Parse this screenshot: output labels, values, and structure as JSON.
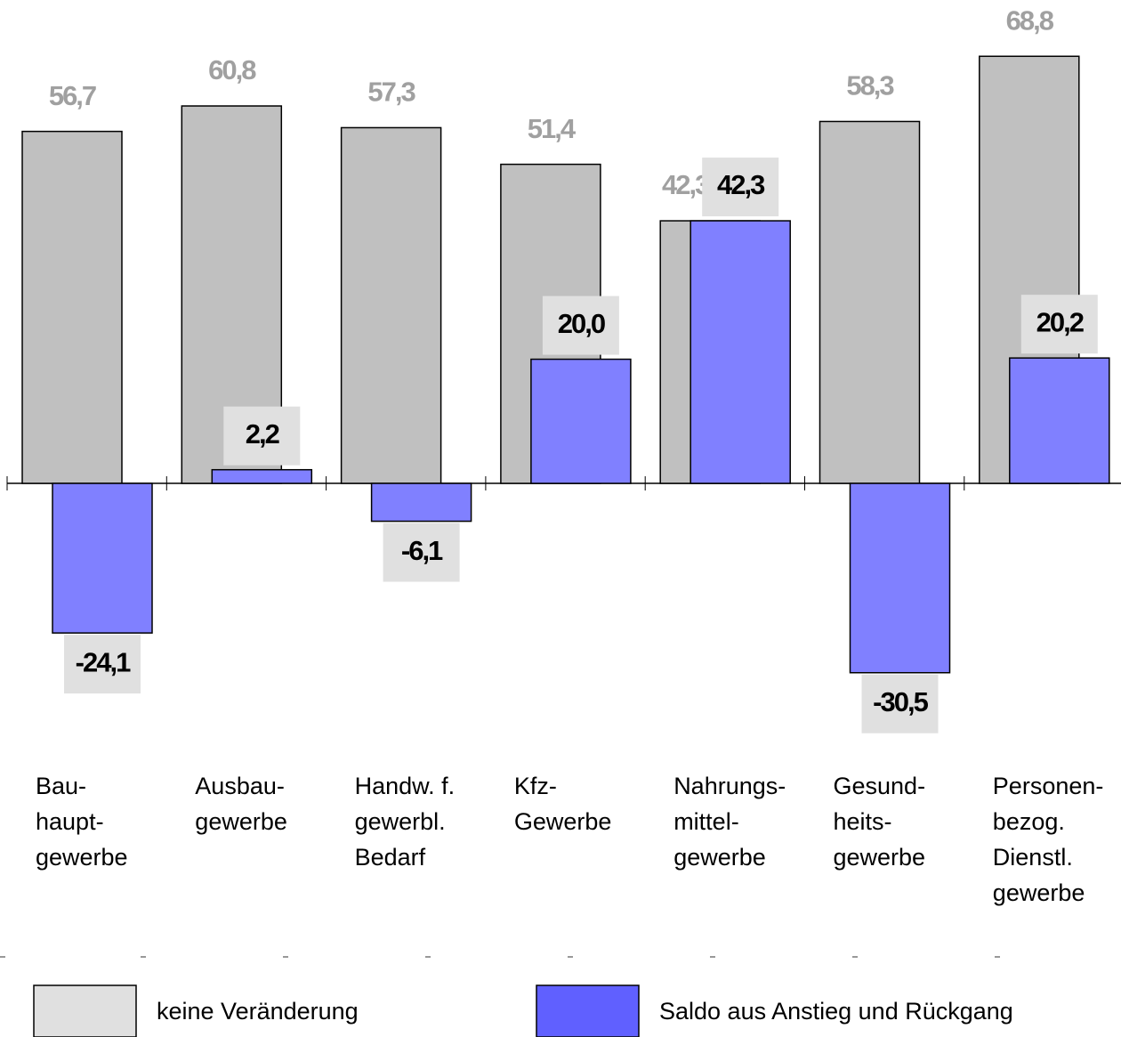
{
  "chart_data": {
    "type": "bar",
    "categories": [
      "Bau-\nhaupt-\ngewerbe",
      "Ausbau-\ngewerbe",
      "Handw. f.\ngewerbl.\nBedarf",
      "Kfz-\nGewerbe",
      "Nahrungs-\nmittel-\ngewerbe",
      "Gesund-\nheits-\ngewerbe",
      "Personen-\nbezog.\nDienstl.\ngewerbe"
    ],
    "series": [
      {
        "name": "keine Veränderung",
        "color": "#c0c0c0",
        "legend_color": "#e0e0e0",
        "values": [
          56.7,
          60.8,
          57.3,
          51.4,
          42.3,
          58.3,
          68.8
        ],
        "value_labels": [
          "56,7",
          "60,8",
          "57,3",
          "51,4",
          "42,3",
          "58,3",
          "68,8"
        ]
      },
      {
        "name": "Saldo aus Anstieg und Rückgang",
        "color": "#8080ff",
        "legend_color": "#6060ff",
        "values": [
          -24.1,
          2.2,
          -6.1,
          20.0,
          42.3,
          -30.5,
          20.2
        ],
        "value_labels": [
          "-24,1",
          "2,2",
          "-6,1",
          "20,0",
          "42,3",
          "-30,5",
          "20,2"
        ]
      }
    ],
    "ylim": [
      -40,
      75
    ]
  }
}
